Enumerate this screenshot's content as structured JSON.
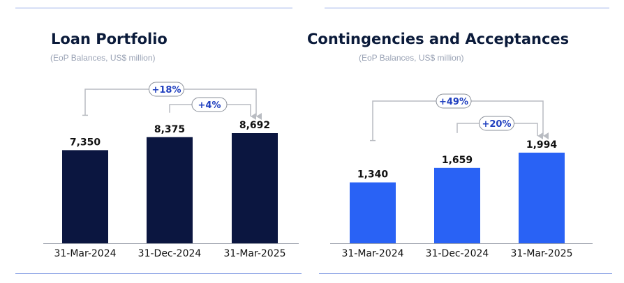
{
  "panels": [
    {
      "title": "Loan Portfolio",
      "subtitle": "(EoP Balances, US$ million)",
      "color": "#0b1640"
    },
    {
      "title": "Contingencies and Acceptances",
      "subtitle": "(EoP Balances, US$ million)",
      "color": "#2962f5"
    }
  ],
  "chart_data": [
    {
      "type": "bar",
      "title": "Loan Portfolio",
      "subtitle": "(EoP Balances, US$ million)",
      "categories": [
        "31-Mar-2024",
        "31-Dec-2024",
        "31-Mar-2025"
      ],
      "values": [
        7350,
        8375,
        8692
      ],
      "value_labels": [
        "7,350",
        "8,375",
        "8,692"
      ],
      "growth_annotations": [
        {
          "from": 0,
          "to": 2,
          "label": "+18%"
        },
        {
          "from": 1,
          "to": 2,
          "label": "+4%"
        }
      ],
      "bar_color": "#0b1640",
      "grid": false,
      "legend": false
    },
    {
      "type": "bar",
      "title": "Contingencies and Acceptances",
      "subtitle": "(EoP Balances, US$ million)",
      "categories": [
        "31-Mar-2024",
        "31-Dec-2024",
        "31-Mar-2025"
      ],
      "values": [
        1340,
        1659,
        1994
      ],
      "value_labels": [
        "1,340",
        "1,659",
        "1,994"
      ],
      "growth_annotations": [
        {
          "from": 0,
          "to": 2,
          "label": "+49%"
        },
        {
          "from": 1,
          "to": 2,
          "label": "+20%"
        }
      ],
      "bar_color": "#2962f5",
      "grid": false,
      "legend": false
    }
  ]
}
